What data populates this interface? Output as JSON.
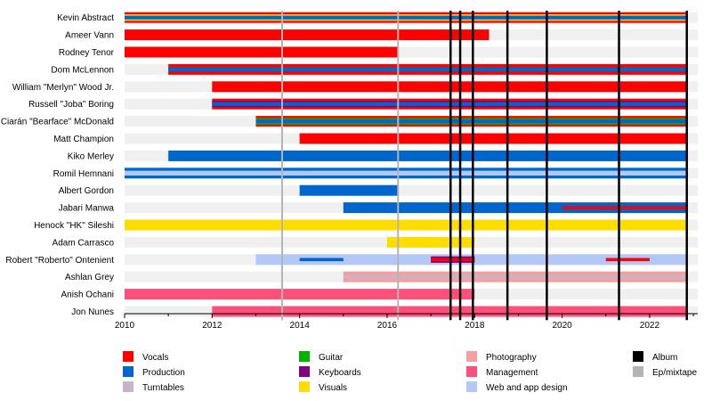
{
  "chart_data": {
    "type": "timeline",
    "title": "",
    "x": {
      "min": 2010,
      "max": 2023.1,
      "ticks": [
        2010,
        2012,
        2014,
        2016,
        2018,
        2020,
        2022
      ]
    },
    "legend_placement": "bottom",
    "categories": {
      "vocals": {
        "label": "Vocals",
        "color": "#ff0000"
      },
      "production": {
        "label": "Production",
        "color": "#0066cc"
      },
      "turntables": {
        "label": "Turntables",
        "color": "#c8b4c8"
      },
      "guitar": {
        "label": "Guitar",
        "color": "#00b400"
      },
      "keyboards": {
        "label": "Keyboards",
        "color": "#800080"
      },
      "visuals": {
        "label": "Visuals",
        "color": "#ffdd00"
      },
      "photography": {
        "label": "Photography",
        "color": "#f4a0a0"
      },
      "management": {
        "label": "Management",
        "color": "#ff4f7b"
      },
      "web": {
        "label": "Web and app design",
        "color": "#b4c8f8"
      },
      "album": {
        "label": "Album",
        "color": "#000000"
      },
      "ep": {
        "label": "Ep/mixtape",
        "color": "#b4b4b4"
      }
    },
    "legend_order": [
      "vocals",
      "guitar",
      "photography",
      "album",
      "production",
      "keyboards",
      "management",
      "ep",
      "turntables",
      "visuals",
      "web"
    ],
    "members": [
      {
        "name": "Kevin Abstract",
        "bars": [
          {
            "start": 2010,
            "end": 2022.85,
            "layers": [
              [
                "vocals",
                1.0
              ],
              [
                "visuals",
                0.6
              ],
              [
                "production",
                0.35
              ]
            ]
          }
        ]
      },
      {
        "name": "Ameer Vann",
        "bars": [
          {
            "start": 2010,
            "end": 2018.33,
            "layers": [
              [
                "vocals",
                1.0
              ]
            ]
          }
        ]
      },
      {
        "name": "Rodney Tenor",
        "bars": [
          {
            "start": 2010,
            "end": 2016.25,
            "layers": [
              [
                "vocals",
                1.0
              ]
            ]
          }
        ]
      },
      {
        "name": "Dom McLennon",
        "bars": [
          {
            "start": 2011,
            "end": 2022.85,
            "layers": [
              [
                "vocals",
                1.0
              ],
              [
                "production",
                0.4
              ]
            ]
          }
        ]
      },
      {
        "name": "William \"Merlyn\" Wood Jr.",
        "bars": [
          {
            "start": 2012,
            "end": 2022.85,
            "layers": [
              [
                "vocals",
                1.0
              ]
            ]
          }
        ]
      },
      {
        "name": "Russell \"Joba\" Boring",
        "bars": [
          {
            "start": 2012,
            "end": 2022.85,
            "layers": [
              [
                "vocals",
                1.0
              ],
              [
                "keyboards",
                0.6
              ],
              [
                "production",
                0.35
              ]
            ]
          }
        ]
      },
      {
        "name": "Ciarán \"Bearface\" McDonald",
        "bars": [
          {
            "start": 2013,
            "end": 2022.85,
            "layers": [
              [
                "vocals",
                1.0
              ],
              [
                "guitar",
                0.6
              ],
              [
                "production",
                0.35
              ]
            ]
          }
        ]
      },
      {
        "name": "Matt Champion",
        "bars": [
          {
            "start": 2014,
            "end": 2022.85,
            "layers": [
              [
                "vocals",
                1.0
              ]
            ]
          }
        ]
      },
      {
        "name": "Kiko Merley",
        "bars": [
          {
            "start": 2011,
            "end": 2022.85,
            "layers": [
              [
                "production",
                1.0
              ]
            ]
          }
        ]
      },
      {
        "name": "Romil Hemnani",
        "bars": [
          {
            "start": 2010,
            "end": 2022.85,
            "layers": [
              [
                "production",
                1.0
              ],
              [
                "web",
                0.45
              ]
            ]
          }
        ]
      },
      {
        "name": "Albert Gordon",
        "bars": [
          {
            "start": 2014,
            "end": 2016.25,
            "layers": [
              [
                "production",
                1.0
              ]
            ]
          }
        ]
      },
      {
        "name": "Jabari Manwa",
        "bars": [
          {
            "start": 2015,
            "end": 2022.85,
            "layers": [
              [
                "production",
                1.0
              ]
            ]
          },
          {
            "start": 2020,
            "end": 2022.85,
            "layers": [
              [
                "vocals",
                0.3
              ]
            ]
          }
        ]
      },
      {
        "name": "Henock \"HK\" Sileshi",
        "bars": [
          {
            "start": 2010,
            "end": 2022.85,
            "layers": [
              [
                "visuals",
                1.0
              ]
            ]
          }
        ]
      },
      {
        "name": "Adam Carrasco",
        "bars": [
          {
            "start": 2016,
            "end": 2018,
            "layers": [
              [
                "visuals",
                1.0
              ]
            ]
          }
        ]
      },
      {
        "name": "Robert \"Roberto\" Ontenient",
        "bars": [
          {
            "start": 2013,
            "end": 2022.85,
            "layers": [
              [
                "web",
                1.0
              ]
            ]
          },
          {
            "start": 2014,
            "end": 2015,
            "layers": [
              [
                "production",
                0.3
              ]
            ]
          },
          {
            "start": 2017,
            "end": 2018,
            "layers": [
              [
                "keyboards",
                0.6
              ],
              [
                "vocals",
                0.3
              ]
            ]
          },
          {
            "start": 2021,
            "end": 2022,
            "layers": [
              [
                "vocals",
                0.3
              ]
            ]
          }
        ]
      },
      {
        "name": "Ashlan Grey",
        "bars": [
          {
            "start": 2015,
            "end": 2022.85,
            "layers": [
              [
                "photography",
                1.0
              ],
              [
                "turntables",
                0.3
              ]
            ]
          }
        ]
      },
      {
        "name": "Anish Ochani",
        "bars": [
          {
            "start": 2010,
            "end": 2018,
            "layers": [
              [
                "management",
                1.0
              ]
            ]
          }
        ]
      },
      {
        "name": "Jon Nunes",
        "bars": [
          {
            "start": 2012,
            "end": 2022.85,
            "layers": [
              [
                "management",
                1.0
              ]
            ]
          }
        ]
      }
    ],
    "releases": [
      {
        "kind": "ep",
        "year": 2013.6
      },
      {
        "kind": "ep",
        "year": 2016.25
      },
      {
        "kind": "album",
        "year": 2017.45
      },
      {
        "kind": "album",
        "year": 2017.67
      },
      {
        "kind": "album",
        "year": 2017.96
      },
      {
        "kind": "album",
        "year": 2018.75
      },
      {
        "kind": "album",
        "year": 2019.65
      },
      {
        "kind": "album",
        "year": 2021.3
      },
      {
        "kind": "album",
        "year": 2022.85
      }
    ]
  }
}
